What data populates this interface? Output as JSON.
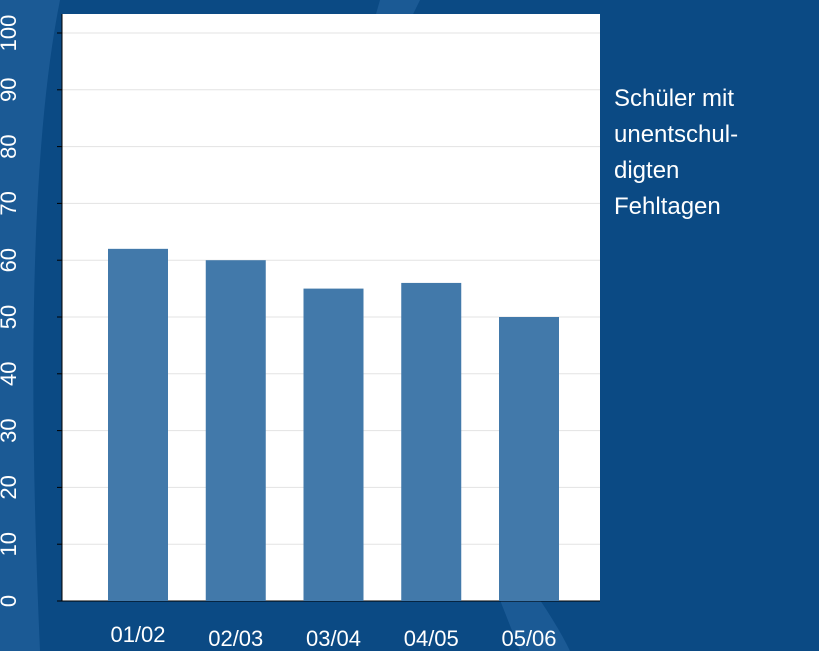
{
  "chart_data": {
    "type": "bar",
    "categories": [
      "01/02",
      "02/03",
      "03/04",
      "04/05",
      "05/06"
    ],
    "series": [
      {
        "name": "Schüler mit\nunentschul-\ndigten\nFehltagen",
        "color": "#4279aa",
        "values": [
          62,
          60,
          55,
          56,
          50
        ]
      }
    ],
    "ylim": [
      0,
      100
    ],
    "yticks": [
      0,
      10,
      20,
      30,
      40,
      50,
      60,
      70,
      80,
      90,
      100
    ],
    "grid": true
  }
}
